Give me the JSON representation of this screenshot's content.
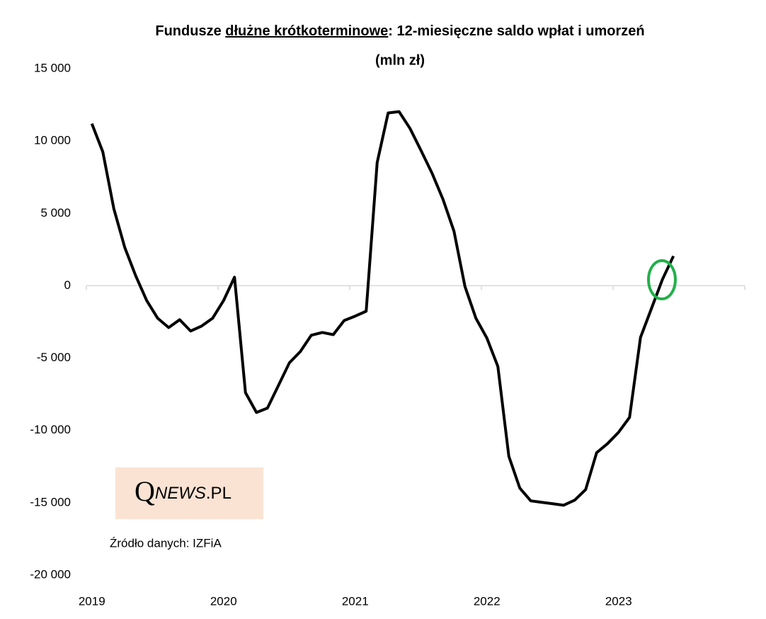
{
  "chart_data": {
    "type": "line",
    "title": {
      "before": "Fundusze ",
      "underlined": "dłużne krótkoterminowe",
      "after": ": 12-miesięczne saldo wpłat i umorzeń"
    },
    "subtitle": "(mln zł)",
    "source": "Źródło danych: IZFiA",
    "logo": {
      "q": "Q",
      "news": "NEWS",
      "domain": ".PL"
    },
    "categories": [
      "2019",
      null,
      null,
      null,
      null,
      null,
      null,
      null,
      null,
      null,
      null,
      null,
      "2020",
      null,
      null,
      null,
      null,
      null,
      null,
      null,
      null,
      null,
      null,
      null,
      "2021",
      null,
      null,
      null,
      null,
      null,
      null,
      null,
      null,
      null,
      null,
      null,
      "2022",
      null,
      null,
      null,
      null,
      null,
      null,
      null,
      null,
      null,
      null,
      null,
      "2023",
      null,
      null,
      null,
      null,
      null,
      null,
      null,
      null,
      null,
      null,
      null
    ],
    "series": [
      {
        "color": "#000000",
        "values": [
          11200,
          9250,
          5330,
          2640,
          680,
          -1030,
          -2250,
          -2890,
          -2350,
          -3130,
          -2790,
          -2250,
          -1030,
          590,
          -7390,
          -8760,
          -8460,
          -6900,
          -5330,
          -4550,
          -3420,
          -3230,
          -3380,
          -2400,
          -2100,
          -1760,
          8510,
          11940,
          12030,
          10860,
          9340,
          7780,
          5970,
          3770,
          -50,
          -2250,
          -3620,
          -5580,
          -11790,
          -13990,
          -14870,
          -14970,
          -15070,
          -15170,
          -14820,
          -14090,
          -11540,
          -10910,
          -10130,
          -9100,
          -3570,
          -1570,
          440,
          2050,
          null,
          null,
          null,
          null,
          null,
          null
        ]
      }
    ],
    "ylim": [
      -20000,
      15000
    ],
    "yticks": [
      {
        "value": -20000,
        "label": "-20 000"
      },
      {
        "value": -15000,
        "label": "-15 000"
      },
      {
        "value": -10000,
        "label": "-10 000"
      },
      {
        "value": -5000,
        "label": "-5 000"
      },
      0,
      {
        "value": 5000,
        "label": "5 000"
      },
      {
        "value": 10000,
        "label": "10 000"
      },
      {
        "value": 15000,
        "label": "15 000"
      }
    ]
  }
}
